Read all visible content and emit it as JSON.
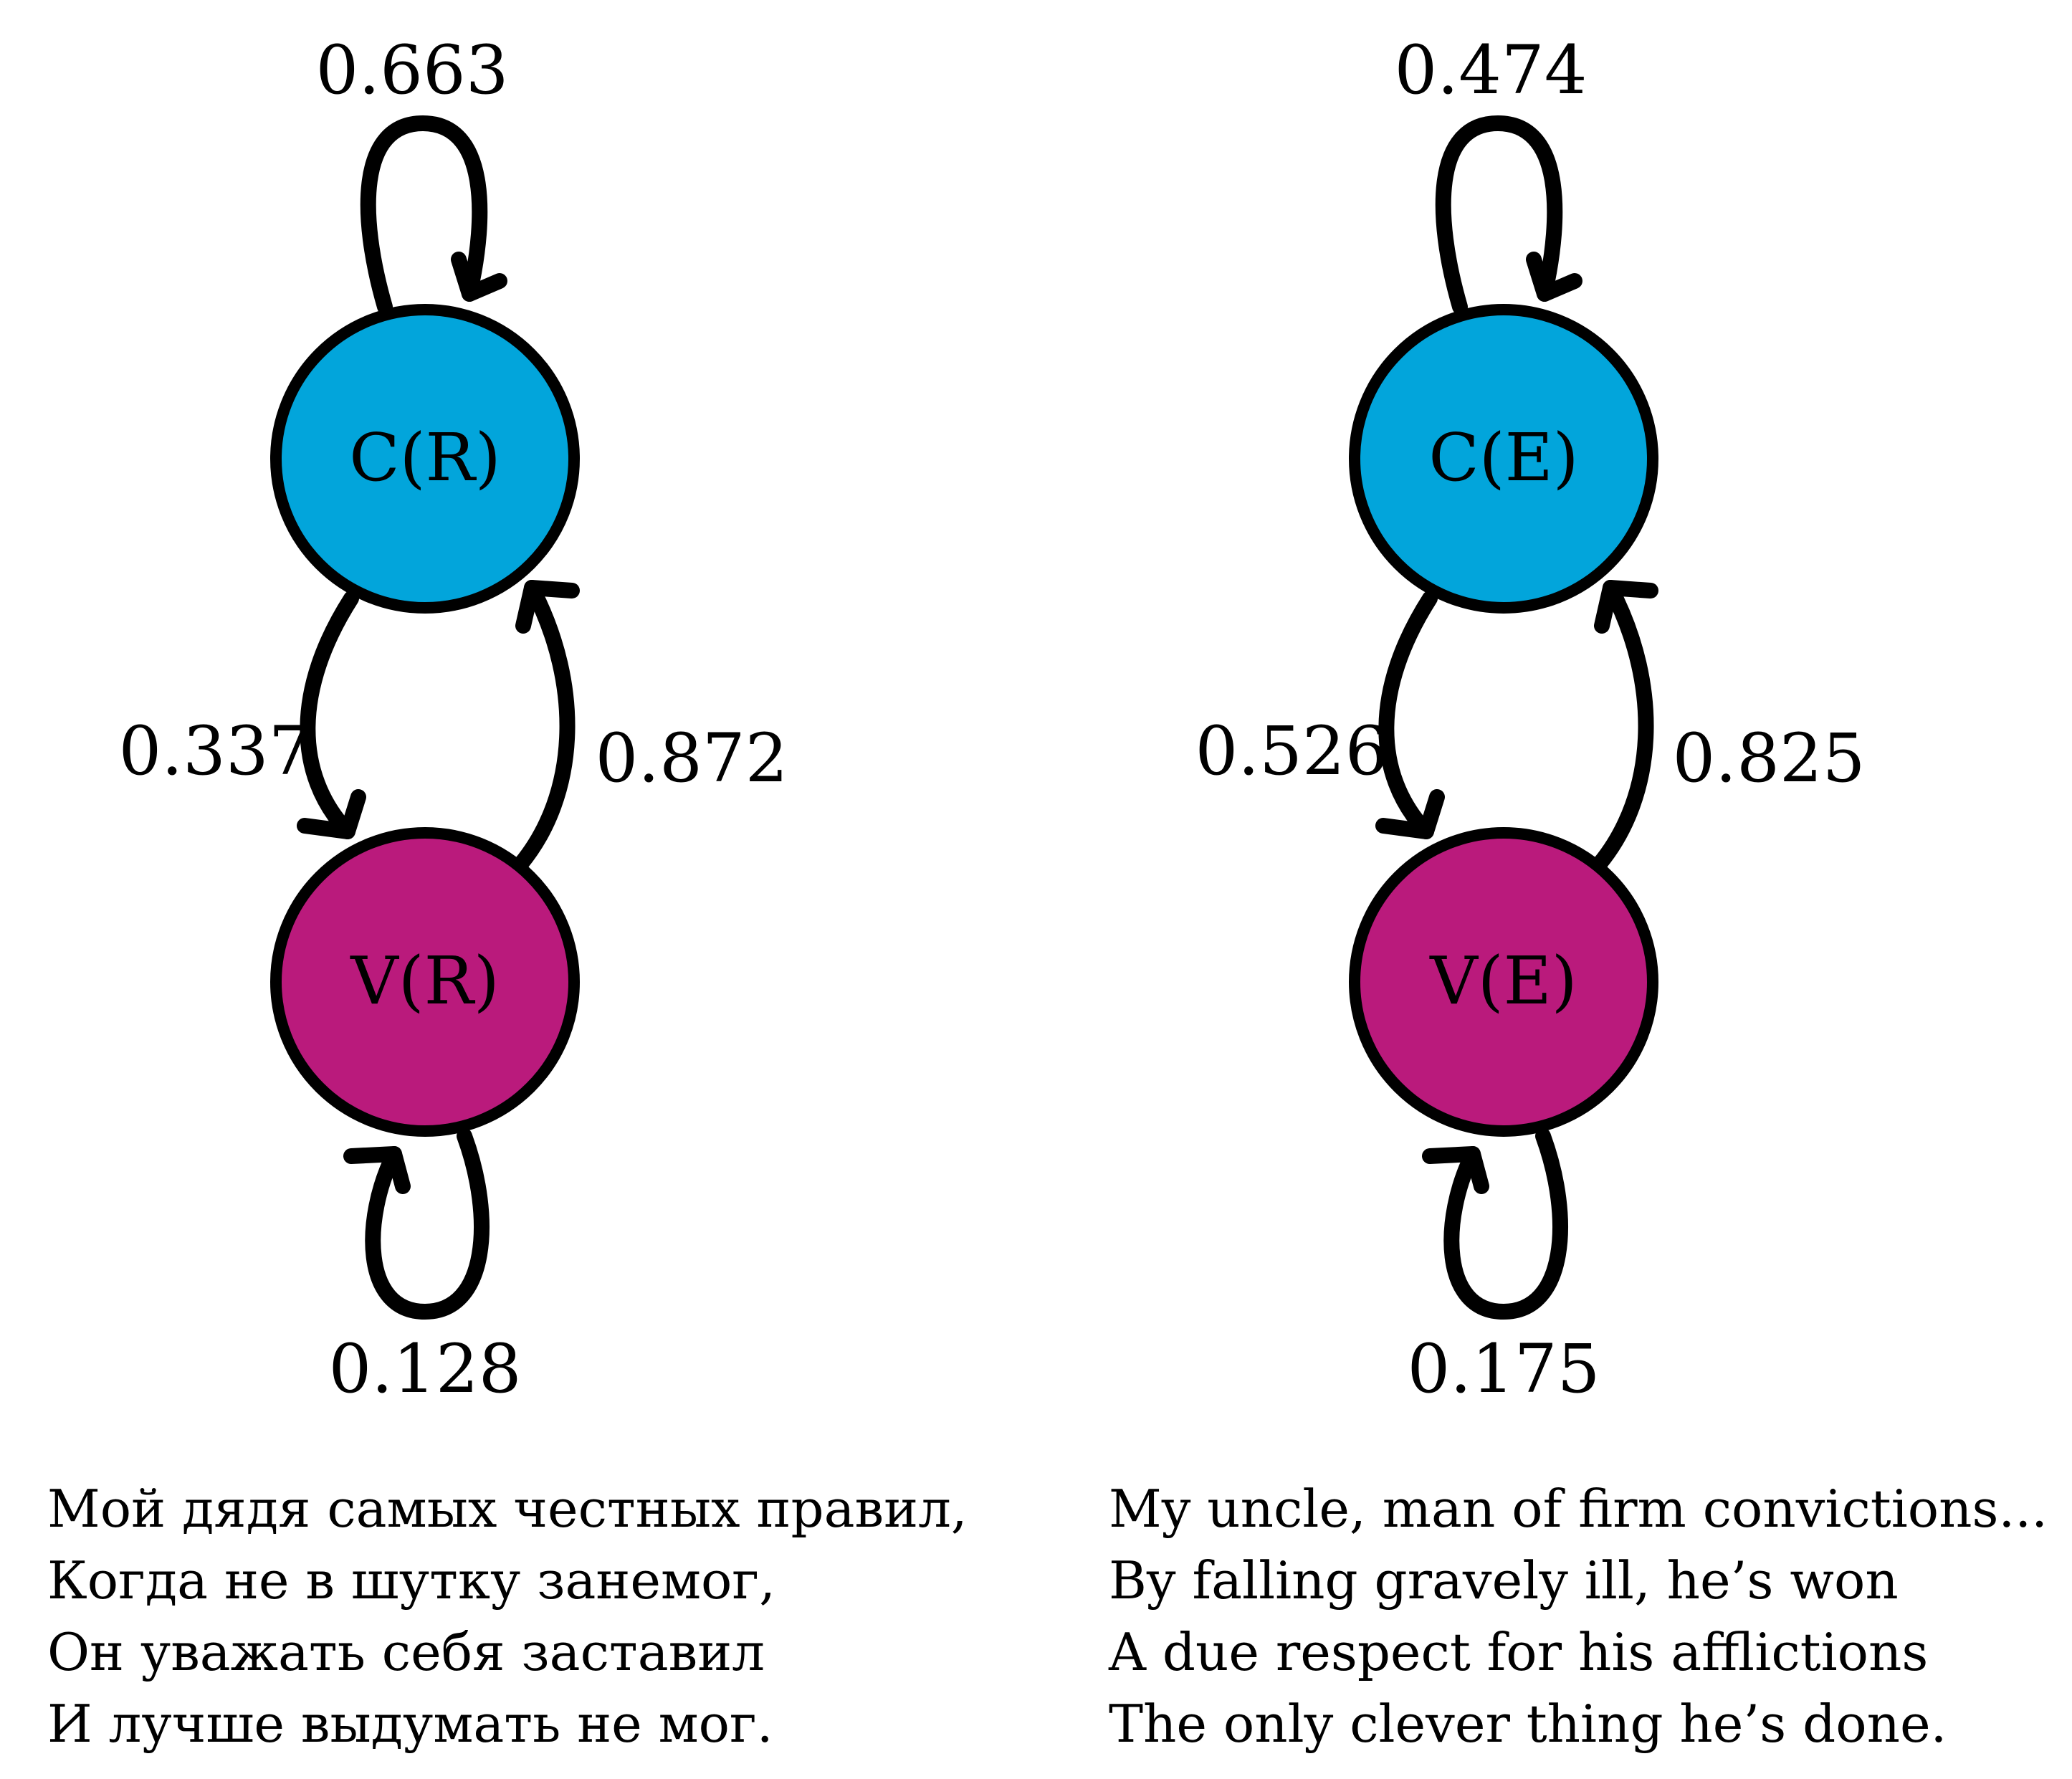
{
  "colors": {
    "consonant_node": "#02A5DB",
    "vowel_node": "#BA1A7C",
    "stroke": "#000000"
  },
  "diagrams": [
    {
      "nodes": {
        "top": {
          "label": "C(R)"
        },
        "bottom": {
          "label": "V(R)"
        }
      },
      "transitions": {
        "top_self": "0.663",
        "top_to_bottom": "0.337",
        "bottom_to_top": "0.872",
        "bottom_self": "0.128"
      }
    },
    {
      "nodes": {
        "top": {
          "label": "C(E)"
        },
        "bottom": {
          "label": "V(E)"
        }
      },
      "transitions": {
        "top_self": "0.474",
        "top_to_bottom": "0.526",
        "bottom_to_top": "0.825",
        "bottom_self": "0.175"
      }
    }
  ],
  "verses": {
    "russian": [
      "Мой дядя самых честных правил,",
      "Когда не в шутку занемог,",
      "Он уважать себя заставил",
      "И лучше выдумать не мог."
    ],
    "english": [
      "My uncle, man of firm convictions...",
      "By falling gravely ill, he’s won",
      "A due respect for his afflictions",
      "The only clever thing he’s done."
    ]
  }
}
